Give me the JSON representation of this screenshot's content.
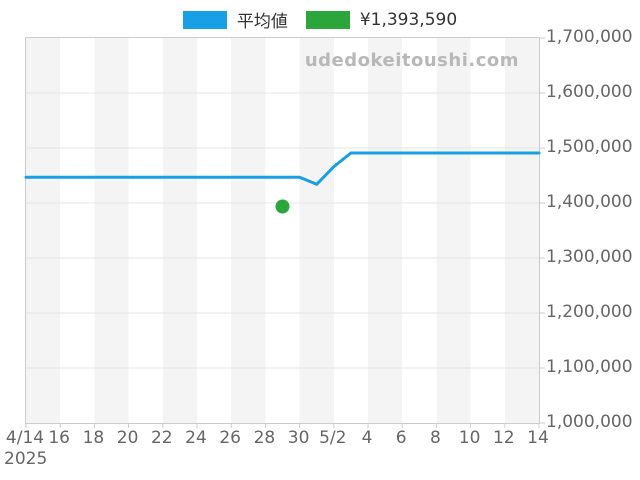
{
  "legend": {
    "items": [
      {
        "label": "平均値",
        "color": "#18a0e6"
      },
      {
        "label": "¥1,393,590",
        "color": "#2ba63a"
      }
    ]
  },
  "watermark": "udedokeitoushi.com",
  "year_label": "2025",
  "colors": {
    "line": "#18a0e6",
    "point": "#2ba63a",
    "grid": "#e4e4e4",
    "band": "#f4f4f4",
    "plot_border": "#cccccc",
    "axis_text": "#666666",
    "legend_text": "#333333",
    "watermark_text": "#b8b8b8"
  },
  "chart_data": {
    "type": "line",
    "title": "",
    "xlabel": "",
    "ylabel": "",
    "grid": "horizontal",
    "legend_position": "top",
    "ylim": [
      1000000,
      1700000
    ],
    "ytick_step": 100000,
    "x_dates": [
      "4/14",
      "4/15",
      "4/16",
      "4/17",
      "4/18",
      "4/19",
      "4/20",
      "4/21",
      "4/22",
      "4/23",
      "4/24",
      "4/25",
      "4/26",
      "4/27",
      "4/28",
      "4/29",
      "4/30",
      "5/1",
      "5/2",
      "5/3",
      "5/4",
      "5/5",
      "5/6",
      "5/7",
      "5/8",
      "5/9",
      "5/10",
      "5/11",
      "5/12",
      "5/13",
      "5/14"
    ],
    "series": [
      {
        "name": "平均値",
        "type": "line",
        "color": "#18a0e6",
        "values": [
          1447000,
          1447000,
          1447000,
          1447000,
          1447000,
          1447000,
          1447000,
          1447000,
          1447000,
          1447000,
          1447000,
          1447000,
          1447000,
          1447000,
          1447000,
          1447000,
          1447000,
          1434000,
          1466000,
          1491000,
          1491000,
          1491000,
          1491000,
          1491000,
          1491000,
          1491000,
          1491000,
          1491000,
          1491000,
          1491000,
          1491000
        ]
      }
    ],
    "point": {
      "date": "4/29",
      "value": 1393590,
      "color": "#2ba63a",
      "label": "¥1,393,590"
    },
    "yticks": [
      {
        "label": "1,700,000",
        "value": 1700000
      },
      {
        "label": "1,600,000",
        "value": 1600000
      },
      {
        "label": "1,500,000",
        "value": 1500000
      },
      {
        "label": "1,400,000",
        "value": 1400000
      },
      {
        "label": "1,300,000",
        "value": 1300000
      },
      {
        "label": "1,200,000",
        "value": 1200000
      },
      {
        "label": "1,100,000",
        "value": 1100000
      },
      {
        "label": "1,000,000",
        "value": 1000000
      }
    ],
    "xticks": [
      {
        "label": "4/14",
        "day": 0
      },
      {
        "label": "16",
        "day": 2
      },
      {
        "label": "18",
        "day": 4
      },
      {
        "label": "20",
        "day": 6
      },
      {
        "label": "22",
        "day": 8
      },
      {
        "label": "24",
        "day": 10
      },
      {
        "label": "26",
        "day": 12
      },
      {
        "label": "28",
        "day": 14
      },
      {
        "label": "30",
        "day": 16
      },
      {
        "label": "5/2",
        "day": 18
      },
      {
        "label": "4",
        "day": 20
      },
      {
        "label": "6",
        "day": 22
      },
      {
        "label": "8",
        "day": 24
      },
      {
        "label": "10",
        "day": 26
      },
      {
        "label": "12",
        "day": 28
      },
      {
        "label": "14",
        "day": 30
      }
    ]
  }
}
